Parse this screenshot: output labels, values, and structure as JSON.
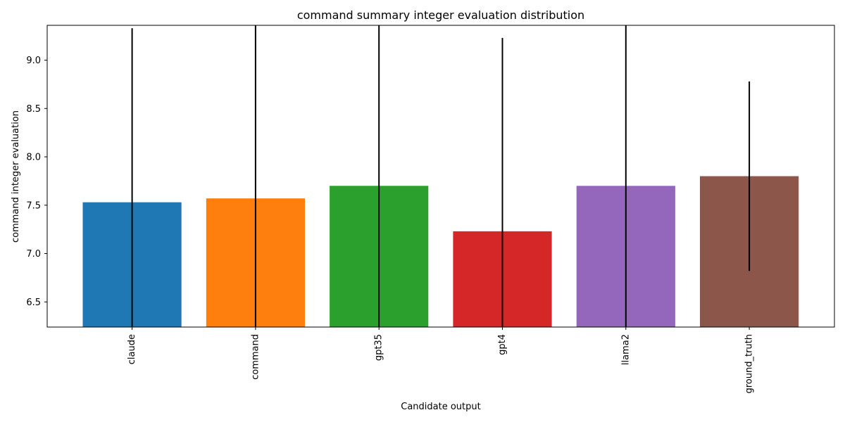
{
  "chart_data": {
    "type": "bar",
    "title": "command summary integer evaluation distribution",
    "xlabel": "Candidate output",
    "ylabel": "command integer evaluation",
    "categories": [
      "claude",
      "command",
      "gpt35",
      "gpt4",
      "llama2",
      "ground_truth"
    ],
    "values": [
      7.53,
      7.57,
      7.7,
      7.23,
      7.7,
      7.8
    ],
    "error": [
      1.8,
      1.85,
      1.75,
      2.0,
      1.8,
      0.98
    ],
    "colors": [
      "#1f77b4",
      "#ff7f0e",
      "#2ca02c",
      "#d62728",
      "#9467bd",
      "#8c564b"
    ],
    "ylim": [
      6.24,
      9.36
    ],
    "yticks": [
      6.5,
      7.0,
      7.5,
      8.0,
      8.5,
      9.0
    ],
    "ytick_labels": [
      "6.5",
      "7.0",
      "7.5",
      "8.0",
      "8.5",
      "9.0"
    ],
    "grid": false,
    "legend": "none"
  }
}
